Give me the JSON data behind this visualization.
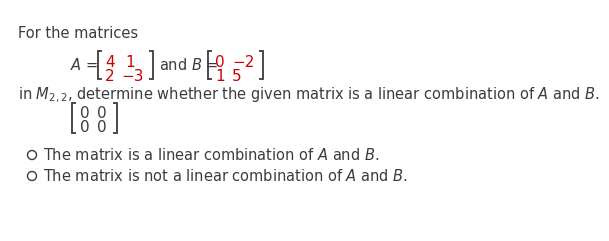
{
  "bg_color": "#ffffff",
  "text_color": "#3c3c3c",
  "red_color": "#cc0000",
  "font_size_main": 10.5,
  "font_size_matrix": 11.0,
  "title": "For the matrices",
  "matrix_A": [
    [
      "4",
      "1"
    ],
    [
      "2",
      "-3"
    ]
  ],
  "matrix_B": [
    [
      "0",
      "-2"
    ],
    [
      "1",
      "5"
    ]
  ],
  "given_matrix": [
    [
      "0",
      "0"
    ],
    [
      "0",
      "0"
    ]
  ],
  "line2": "in $M_{2,2}$, determine whether the given matrix is a linear combination of $A$ and $B$.",
  "option1": "The matrix is a linear combination of $A$ and $B$.",
  "option2": "The matrix is not a linear combination of $A$ and $B$."
}
